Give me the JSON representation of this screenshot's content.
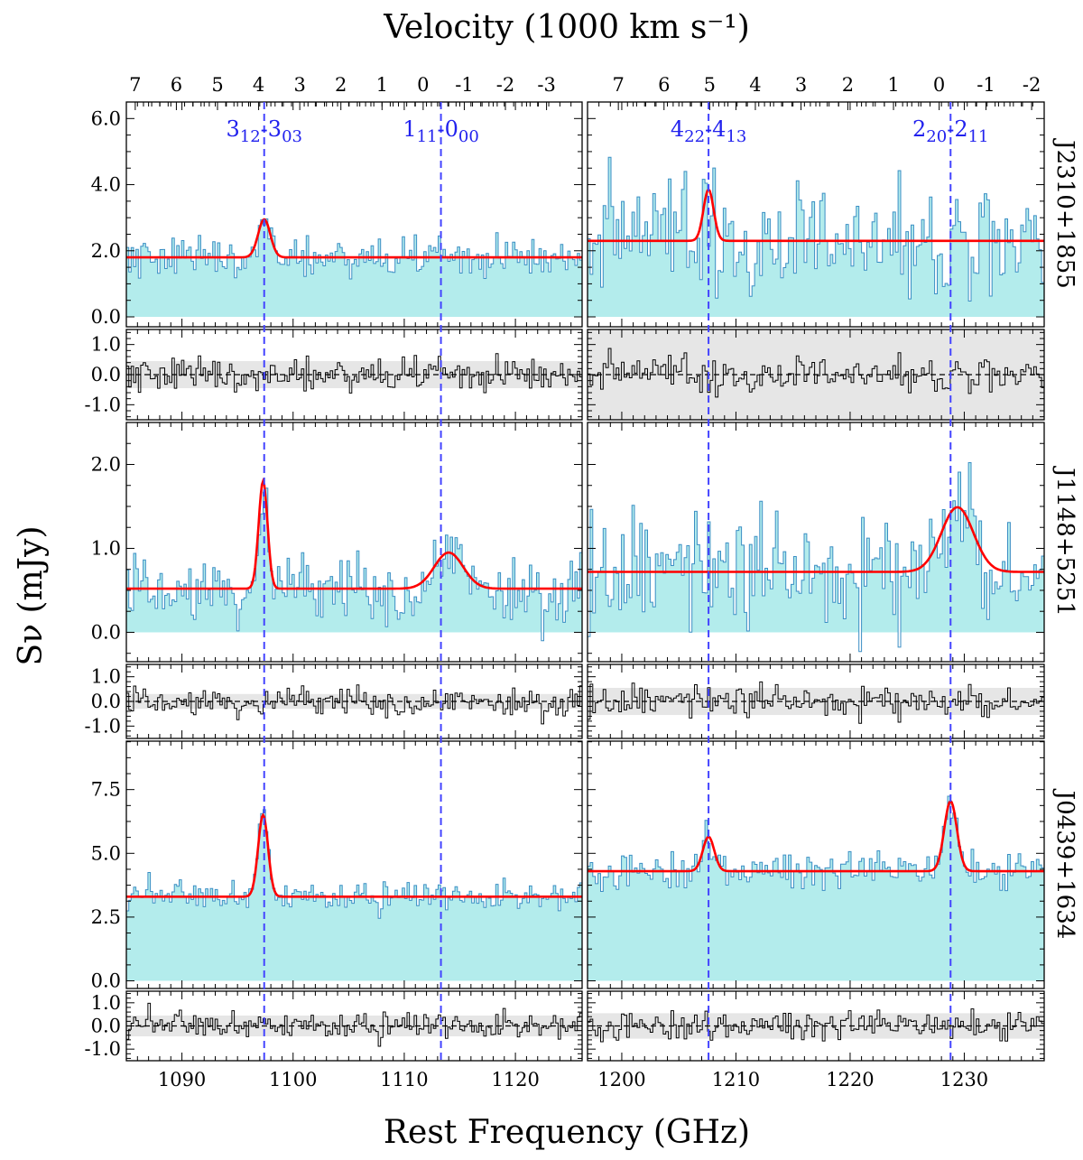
{
  "chart_data": {
    "type": "line",
    "title": "Velocity (1000 km s⁻¹)",
    "xlabel": "Rest Frequency (GHz)",
    "ylabel": "Sν (mJy)",
    "line_color": "#ff0000",
    "line_marker_color": "#4444ff",
    "fill_color": "#b3ecec",
    "spectrum_color": "#3b8ec4",
    "columns": [
      {
        "xlim": [
          1085,
          1126
        ],
        "xticks": [
          "1090",
          "1100",
          "1110",
          "1120"
        ],
        "xtick_values": [
          1090,
          1100,
          1110,
          1120
        ],
        "velocity_ticks": [
          "7",
          "6",
          "5",
          "4",
          "3",
          "2",
          "1",
          "0",
          "-1",
          "-2",
          "-3"
        ],
        "velocity_tick_freq": [
          1085.8,
          1089.5,
          1093.2,
          1096.9,
          1100.6,
          1104.3,
          1108.0,
          1111.7,
          1115.4,
          1119.1,
          1122.8
        ],
        "lines": [
          {
            "label_main": "3",
            "label_sub1": "12",
            "label_mid": "-3",
            "label_sub2": "03",
            "freq": 1097.4
          },
          {
            "label_main": "1",
            "label_sub1": "11",
            "label_mid": "-0",
            "label_sub2": "00",
            "freq": 1113.3
          }
        ]
      },
      {
        "xlim": [
          1197,
          1237
        ],
        "xticks": [
          "1200",
          "1210",
          "1220",
          "1230"
        ],
        "xtick_values": [
          1200,
          1210,
          1220,
          1230
        ],
        "velocity_ticks": [
          "7",
          "6",
          "5",
          "4",
          "3",
          "2",
          "1",
          "0",
          "-1",
          "-2"
        ],
        "velocity_tick_freq": [
          1199.7,
          1203.7,
          1207.7,
          1211.7,
          1215.7,
          1219.8,
          1223.8,
          1227.8,
          1231.9,
          1235.9
        ],
        "lines": [
          {
            "label_main": "4",
            "label_sub1": "22",
            "label_mid": "-4",
            "label_sub2": "13",
            "freq": 1207.6
          },
          {
            "label_main": "2",
            "label_sub1": "20",
            "label_mid": "-2",
            "label_sub2": "11",
            "freq": 1228.8
          }
        ]
      }
    ],
    "residual_ylim": [
      -1.5,
      1.5
    ],
    "residual_ticks": [
      "1.0",
      "0.0",
      "-1.0"
    ],
    "residual_tick_values": [
      1.0,
      0.0,
      -1.0
    ],
    "sources": [
      {
        "name": "J2310+1855",
        "ylim": [
          -0.3,
          6.5
        ],
        "yticks": [
          "6.0",
          "4.0",
          "2.0",
          "0.0"
        ],
        "ytick_values": [
          6.0,
          4.0,
          2.0,
          0.0
        ],
        "noise": [
          0.55,
          1.5
        ],
        "residual_band": [
          0.45,
          1.5
        ],
        "panels": [
          {
            "continuum": 1.8,
            "gaussians": [
              {
                "center": 1097.4,
                "amp": 1.15,
                "sigma": 0.55
              }
            ]
          },
          {
            "continuum": 2.3,
            "gaussians": [
              {
                "center": 1207.6,
                "amp": 1.55,
                "sigma": 0.45
              }
            ]
          }
        ]
      },
      {
        "name": "J1148+5251",
        "ylim": [
          -0.35,
          2.5
        ],
        "yticks": [
          "2.0",
          "1.0",
          "0.0"
        ],
        "ytick_values": [
          2.0,
          1.0,
          0.0
        ],
        "noise": [
          0.35,
          0.55
        ],
        "residual_band": [
          0.3,
          0.55
        ],
        "panels": [
          {
            "continuum": 0.52,
            "gaussians": [
              {
                "center": 1097.3,
                "amp": 1.28,
                "sigma": 0.4
              },
              {
                "center": 1114.0,
                "amp": 0.43,
                "sigma": 1.3
              }
            ]
          },
          {
            "continuum": 0.72,
            "gaussians": [
              {
                "center": 1229.4,
                "amp": 0.77,
                "sigma": 1.4
              }
            ]
          }
        ]
      },
      {
        "name": "J0439+1634",
        "ylim": [
          -0.3,
          9.4
        ],
        "yticks": [
          "7.5",
          "5.0",
          "2.5",
          "0.0"
        ],
        "ytick_values": [
          7.5,
          5.0,
          2.5,
          0.0
        ],
        "noise": [
          0.5,
          0.6
        ],
        "residual_band": [
          0.45,
          0.55
        ],
        "panels": [
          {
            "continuum": 3.3,
            "gaussians": [
              {
                "center": 1097.3,
                "amp": 3.2,
                "sigma": 0.45
              }
            ]
          },
          {
            "continuum": 4.3,
            "gaussians": [
              {
                "center": 1207.6,
                "amp": 1.35,
                "sigma": 0.5
              },
              {
                "center": 1228.8,
                "amp": 2.75,
                "sigma": 0.55
              }
            ]
          }
        ]
      }
    ]
  }
}
